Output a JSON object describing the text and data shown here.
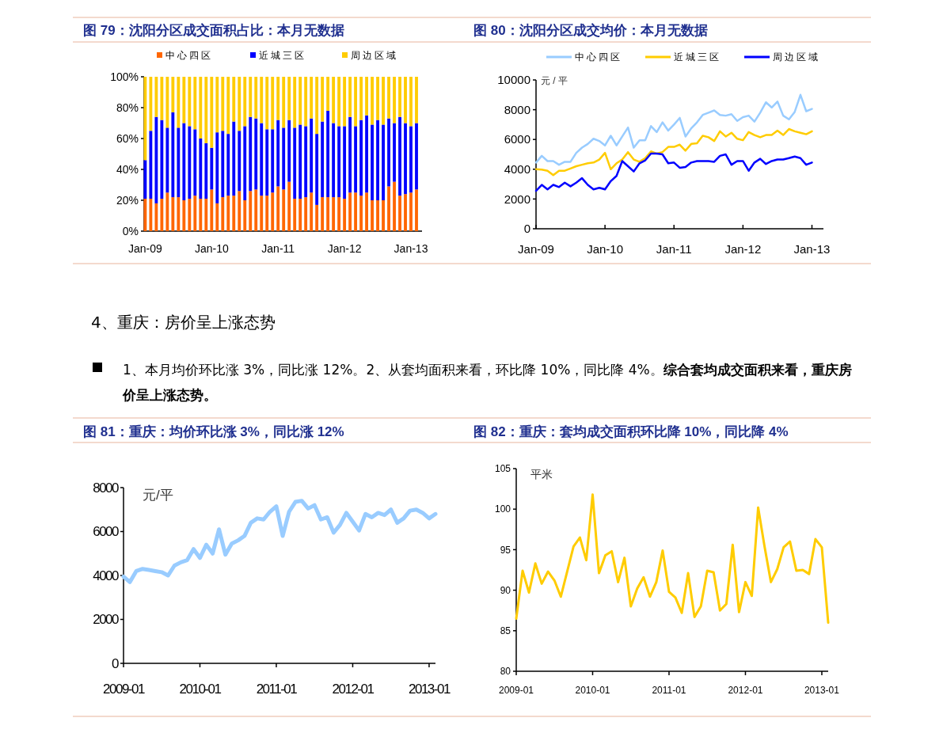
{
  "chart_data": [
    {
      "type": "bar",
      "title": "图 79：沈阳分区成交面积占比：本月无数据",
      "stacked": true,
      "legend": "top",
      "x": [
        "2009-01",
        "2009-02",
        "2009-03",
        "2009-04",
        "2009-05",
        "2009-06",
        "2009-07",
        "2009-08",
        "2009-09",
        "2009-10",
        "2009-11",
        "2009-12",
        "2010-01",
        "2010-02",
        "2010-03",
        "2010-04",
        "2010-05",
        "2010-06",
        "2010-07",
        "2010-08",
        "2010-09",
        "2010-10",
        "2010-11",
        "2010-12",
        "2011-01",
        "2011-02",
        "2011-03",
        "2011-04",
        "2011-05",
        "2011-06",
        "2011-07",
        "2011-08",
        "2011-09",
        "2011-10",
        "2011-11",
        "2011-12",
        "2012-01",
        "2012-02",
        "2012-03",
        "2012-04",
        "2012-05",
        "2012-06",
        "2012-07",
        "2012-08",
        "2012-09",
        "2012-10",
        "2012-11",
        "2012-12",
        "2013-01",
        "2013-02"
      ],
      "xlim": [
        "2008-12-25",
        "2013-03-01"
      ],
      "xticks": [
        {
          "value": "2009-01",
          "label": "Jan-09"
        },
        {
          "value": "2010-01",
          "label": "Jan-10"
        },
        {
          "value": "2011-01",
          "label": "Jan-11"
        },
        {
          "value": "2012-01",
          "label": "Jan-12"
        },
        {
          "value": "2013-01",
          "label": "Jan-13"
        }
      ],
      "ylim": [
        0,
        100
      ],
      "yticks": [
        {
          "value": 0,
          "label": "0%"
        },
        {
          "value": 20,
          "label": "20%"
        },
        {
          "value": 40,
          "label": "40%"
        },
        {
          "value": 60,
          "label": "60%"
        },
        {
          "value": 80,
          "label": "80%"
        },
        {
          "value": 100,
          "label": "100%"
        }
      ],
      "series": [
        {
          "name": "中心四区",
          "color": "#ff6600",
          "values": [
            21,
            21,
            18,
            21,
            25,
            22,
            22,
            20,
            21,
            23,
            21,
            21,
            27,
            18,
            22,
            23,
            23,
            26,
            20,
            26,
            27,
            23,
            23,
            25,
            29,
            27,
            32,
            21,
            21,
            22,
            25,
            17,
            22,
            22,
            22,
            22,
            21,
            25,
            25,
            23,
            25,
            20,
            20,
            20,
            29,
            32,
            23,
            24,
            25,
            27
          ]
        },
        {
          "name": "近城三区",
          "color": "#0000ff",
          "values": [
            25,
            44,
            56,
            51,
            42,
            55,
            45,
            50,
            47,
            43,
            39,
            36,
            27,
            46,
            43,
            40,
            48,
            39,
            48,
            48,
            46,
            47,
            43,
            41,
            43,
            40,
            40,
            46,
            48,
            46,
            48,
            46,
            49,
            56,
            48,
            46,
            47,
            49,
            43,
            49,
            50,
            49,
            52,
            49,
            44,
            38,
            51,
            46,
            43,
            43
          ]
        },
        {
          "name": "周边区域",
          "color": "#ffcc00",
          "values": [
            54,
            35,
            26,
            28,
            33,
            23,
            33,
            30,
            32,
            34,
            40,
            43,
            46,
            36,
            35,
            37,
            29,
            35,
            32,
            26,
            27,
            30,
            34,
            34,
            28,
            33,
            28,
            33,
            31,
            32,
            27,
            37,
            29,
            22,
            30,
            32,
            32,
            26,
            32,
            28,
            25,
            31,
            28,
            31,
            27,
            30,
            26,
            30,
            32,
            30
          ]
        }
      ]
    },
    {
      "type": "line",
      "title": "图 80：沈阳分区成交均价：本月无数据",
      "ylabel": "元 / 平",
      "legend": "top",
      "x": [
        "2009-01",
        "2009-02",
        "2009-03",
        "2009-04",
        "2009-05",
        "2009-06",
        "2009-07",
        "2009-08",
        "2009-09",
        "2009-10",
        "2009-11",
        "2009-12",
        "2010-01",
        "2010-02",
        "2010-03",
        "2010-04",
        "2010-05",
        "2010-06",
        "2010-07",
        "2010-08",
        "2010-09",
        "2010-10",
        "2010-11",
        "2010-12",
        "2011-01",
        "2011-02",
        "2011-03",
        "2011-04",
        "2011-05",
        "2011-06",
        "2011-07",
        "2011-08",
        "2011-09",
        "2011-10",
        "2011-11",
        "2011-12",
        "2012-01",
        "2012-02",
        "2012-03",
        "2012-04",
        "2012-05",
        "2012-06",
        "2012-07",
        "2012-08",
        "2012-09",
        "2012-10",
        "2012-11",
        "2012-12",
        "2013-01"
      ],
      "xlim": [
        "2009-01",
        "2013-03"
      ],
      "xticks": [
        {
          "value": "2009-01",
          "label": "Jan-09"
        },
        {
          "value": "2010-01",
          "label": "Jan-10"
        },
        {
          "value": "2011-01",
          "label": "Jan-11"
        },
        {
          "value": "2012-01",
          "label": "Jan-12"
        },
        {
          "value": "2013-01",
          "label": "Jan-13"
        }
      ],
      "ylim": [
        0,
        10000
      ],
      "yticks": [
        0,
        2000,
        4000,
        6000,
        8000,
        10000
      ],
      "series": [
        {
          "name": "中心四区",
          "color": "#99ccff",
          "values": [
            4450,
            4900,
            4550,
            4550,
            4300,
            4500,
            4500,
            5100,
            5450,
            5700,
            6050,
            5900,
            5600,
            6250,
            5600,
            6200,
            6800,
            5450,
            5950,
            5950,
            6900,
            6500,
            7150,
            6600,
            7000,
            7450,
            6200,
            6750,
            7150,
            7650,
            7800,
            7950,
            7650,
            7600,
            7700,
            7250,
            7500,
            7600,
            7200,
            7800,
            8500,
            8150,
            8550,
            7600,
            7350,
            7850,
            9000,
            7900,
            8050
          ]
        },
        {
          "name": "近城三区",
          "color": "#ffcc00",
          "values": [
            4000,
            3980,
            3900,
            3600,
            3900,
            3900,
            4050,
            4200,
            4300,
            4400,
            4450,
            4650,
            5100,
            4000,
            4400,
            4650,
            5150,
            4650,
            4500,
            4750,
            5200,
            5050,
            5150,
            5500,
            5500,
            5650,
            5250,
            5700,
            5750,
            6250,
            6150,
            5900,
            6550,
            6200,
            6450,
            6050,
            5950,
            6500,
            6300,
            6150,
            6300,
            6300,
            6600,
            6300,
            6700,
            6550,
            6450,
            6350,
            6550
          ]
        },
        {
          "name": "周边区域",
          "color": "#0000ff",
          "values": [
            2550,
            2950,
            2650,
            2950,
            2800,
            3100,
            2850,
            3100,
            3400,
            2950,
            2650,
            2750,
            2650,
            3200,
            3550,
            4550,
            4200,
            3850,
            4400,
            4600,
            5050,
            5050,
            5000,
            4400,
            4450,
            4100,
            4150,
            4450,
            4550,
            4550,
            4550,
            4500,
            4900,
            5000,
            4300,
            4550,
            4550,
            3900,
            4450,
            4700,
            4350,
            4550,
            4650,
            4650,
            4750,
            4850,
            4750,
            4300,
            4450
          ]
        }
      ]
    },
    {
      "type": "other",
      "title": "4、重庆：房价呈上涨态势",
      "annotations": [
        "1、本月均价环比涨 3%，同比涨 12%。2、从套均面积来看，环比降 10%，同比降 4%。**综合套均成交面积来看，重庆房价呈上涨态势。**"
      ]
    },
    {
      "type": "line",
      "title": "图 81：重庆：均价环比涨 3%，同比涨 12%",
      "ylabel": "元/平",
      "x": [
        "2009-01",
        "2009-02",
        "2009-03",
        "2009-04",
        "2009-05",
        "2009-06",
        "2009-07",
        "2009-08",
        "2009-09",
        "2009-10",
        "2009-11",
        "2009-12",
        "2010-01",
        "2010-02",
        "2010-03",
        "2010-04",
        "2010-05",
        "2010-06",
        "2010-07",
        "2010-08",
        "2010-09",
        "2010-10",
        "2010-11",
        "2010-12",
        "2011-01",
        "2011-02",
        "2011-03",
        "2011-04",
        "2011-05",
        "2011-06",
        "2011-07",
        "2011-08",
        "2011-09",
        "2011-10",
        "2011-11",
        "2011-12",
        "2012-01",
        "2012-02",
        "2012-03",
        "2012-04",
        "2012-05",
        "2012-06",
        "2012-07",
        "2012-08",
        "2012-09",
        "2012-10",
        "2012-11",
        "2012-12",
        "2013-01",
        "2013-02"
      ],
      "xlim": [
        "2009-01",
        "2013-02"
      ],
      "xticks": [
        "2009-01",
        "2010-01",
        "2011-01",
        "2012-01",
        "2013-01"
      ],
      "ylim": [
        0,
        8000
      ],
      "yticks": [
        0,
        2000,
        4000,
        6000,
        8000
      ],
      "series": [
        {
          "color": "#99ccff",
          "values": [
            3950,
            3700,
            4200,
            4300,
            4250,
            4200,
            4150,
            4000,
            4450,
            4600,
            4700,
            5200,
            4800,
            5400,
            5000,
            6100,
            4950,
            5450,
            5600,
            5800,
            6400,
            6600,
            6550,
            6900,
            7150,
            5800,
            6900,
            7350,
            7400,
            7050,
            7200,
            6550,
            6650,
            5950,
            6300,
            6850,
            6450,
            6050,
            6800,
            6650,
            6850,
            6750,
            7000,
            6400,
            6600,
            6950,
            7000,
            6850,
            6600,
            6800
          ]
        }
      ]
    },
    {
      "type": "line",
      "title": "图 82：重庆：套均成交面积环比降 10%，同比降 4%",
      "ylabel": "平米",
      "x": [
        "2009-01",
        "2009-02",
        "2009-03",
        "2009-04",
        "2009-05",
        "2009-06",
        "2009-07",
        "2009-08",
        "2009-09",
        "2009-10",
        "2009-11",
        "2009-12",
        "2010-01",
        "2010-02",
        "2010-03",
        "2010-04",
        "2010-05",
        "2010-06",
        "2010-07",
        "2010-08",
        "2010-09",
        "2010-10",
        "2010-11",
        "2010-12",
        "2011-01",
        "2011-02",
        "2011-03",
        "2011-04",
        "2011-05",
        "2011-06",
        "2011-07",
        "2011-08",
        "2011-09",
        "2011-10",
        "2011-11",
        "2011-12",
        "2012-01",
        "2012-02",
        "2012-03",
        "2012-04",
        "2012-05",
        "2012-06",
        "2012-07",
        "2012-08",
        "2012-09",
        "2012-10",
        "2012-11",
        "2012-12",
        "2013-01",
        "2013-02"
      ],
      "xlim": [
        "2009-01",
        "2013-02"
      ],
      "xticks": [
        "2009-01",
        "2010-01",
        "2011-01",
        "2012-01",
        "2013-01"
      ],
      "ylim": [
        80,
        105
      ],
      "yticks": [
        80,
        85,
        90,
        95,
        100,
        105
      ],
      "series": [
        {
          "color": "#ffcc00",
          "values": [
            86.5,
            92.4,
            89.7,
            93.3,
            90.8,
            92.3,
            91.2,
            89.2,
            92.3,
            95.4,
            96.5,
            93.7,
            101.8,
            92.1,
            94.3,
            94.8,
            91.0,
            94.0,
            88.0,
            90.2,
            91.6,
            89.2,
            91.0,
            94.9,
            89.8,
            89.1,
            87.2,
            92.1,
            86.7,
            88.0,
            92.4,
            92.2,
            87.5,
            88.3,
            95.6,
            87.3,
            91.0,
            89.3,
            100.2,
            95.4,
            91.0,
            92.6,
            95.3,
            96.0,
            92.4,
            92.5,
            92.0,
            96.3,
            95.3,
            86.0
          ]
        }
      ]
    }
  ]
}
